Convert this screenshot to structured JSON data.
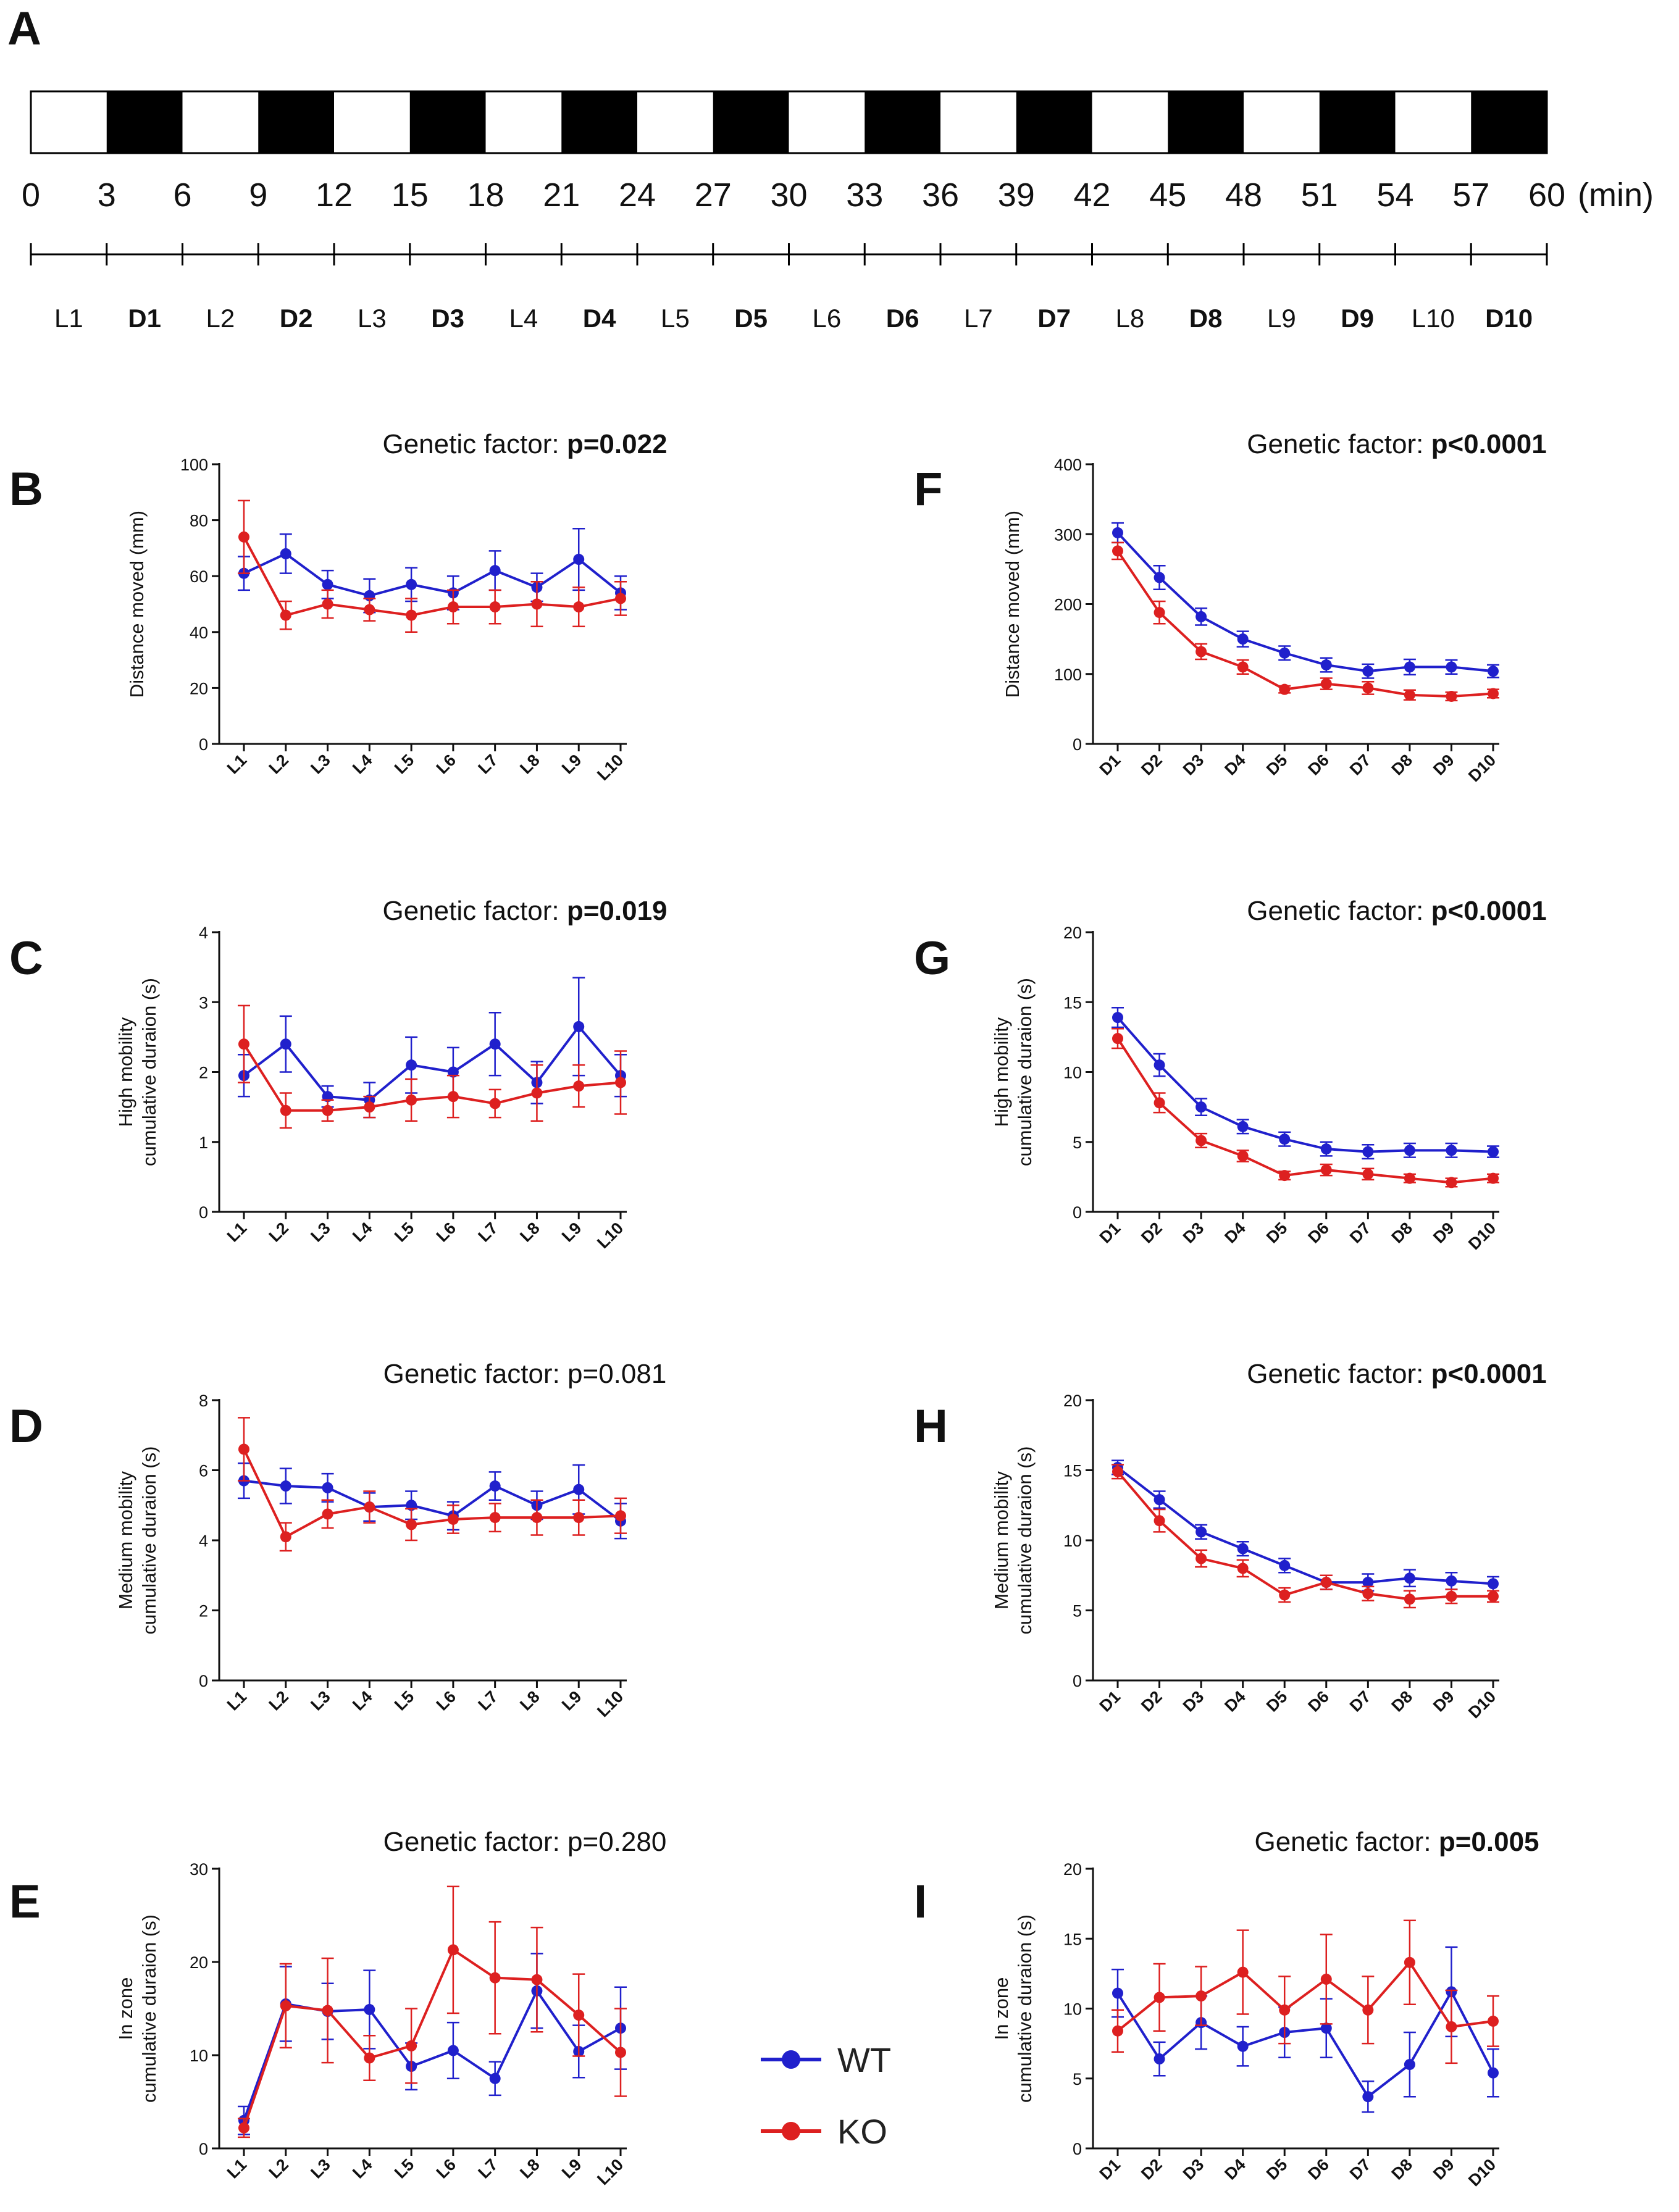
{
  "colors": {
    "wt": "#2020CC",
    "ko": "#DD2020",
    "axis": "#111111"
  },
  "timeline": {
    "label": "A",
    "ticks": [
      "0",
      "3",
      "6",
      "9",
      "12",
      "15",
      "18",
      "21",
      "24",
      "27",
      "30",
      "33",
      "36",
      "39",
      "42",
      "45",
      "48",
      "51",
      "54",
      "57",
      "60"
    ],
    "unit": "(min)",
    "phases": [
      {
        "label": "L1",
        "dark": false
      },
      {
        "label": "D1",
        "dark": true
      },
      {
        "label": "L2",
        "dark": false
      },
      {
        "label": "D2",
        "dark": true
      },
      {
        "label": "L3",
        "dark": false
      },
      {
        "label": "D3",
        "dark": true
      },
      {
        "label": "L4",
        "dark": false
      },
      {
        "label": "D4",
        "dark": true
      },
      {
        "label": "L5",
        "dark": false
      },
      {
        "label": "D5",
        "dark": true
      },
      {
        "label": "L6",
        "dark": false
      },
      {
        "label": "D6",
        "dark": true
      },
      {
        "label": "L7",
        "dark": false
      },
      {
        "label": "D7",
        "dark": true
      },
      {
        "label": "L8",
        "dark": false
      },
      {
        "label": "D8",
        "dark": true
      },
      {
        "label": "L9",
        "dark": false
      },
      {
        "label": "D9",
        "dark": true
      },
      {
        "label": "L10",
        "dark": false
      },
      {
        "label": "D10",
        "dark": true
      }
    ]
  },
  "legend": {
    "wt": "WT",
    "ko": "KO"
  },
  "chart_data": [
    {
      "panel": "B",
      "type": "line",
      "title_prefix": "Genetic factor: ",
      "title_value": "p=0.022",
      "title_bold": true,
      "ylabel_lines": [
        "Distance moved  (mm)"
      ],
      "ylim": [
        0,
        100
      ],
      "yticks": [
        0,
        20,
        40,
        60,
        80,
        100
      ],
      "categories": [
        "L1",
        "L2",
        "L3",
        "L4",
        "L5",
        "L6",
        "L7",
        "L8",
        "L9",
        "L10"
      ],
      "series": [
        {
          "name": "WT",
          "values": [
            61,
            68,
            57,
            53,
            57,
            54,
            62,
            56,
            66,
            54
          ],
          "errors": [
            6,
            7,
            5,
            6,
            6,
            6,
            7,
            5,
            11,
            6
          ]
        },
        {
          "name": "KO",
          "values": [
            74,
            46,
            50,
            48,
            46,
            49,
            49,
            50,
            49,
            52
          ],
          "errors": [
            13,
            5,
            5,
            4,
            6,
            6,
            6,
            8,
            7,
            6
          ]
        }
      ]
    },
    {
      "panel": "C",
      "type": "line",
      "title_prefix": "Genetic factor: ",
      "title_value": "p=0.019",
      "title_bold": true,
      "ylabel_lines": [
        "High mobility",
        "cumulative duraion (s)"
      ],
      "ylim": [
        0,
        4
      ],
      "yticks": [
        0,
        1,
        2,
        3,
        4
      ],
      "categories": [
        "L1",
        "L2",
        "L3",
        "L4",
        "L5",
        "L6",
        "L7",
        "L8",
        "L9",
        "L10"
      ],
      "series": [
        {
          "name": "WT",
          "values": [
            1.95,
            2.4,
            1.65,
            1.6,
            2.1,
            2.0,
            2.4,
            1.85,
            2.65,
            1.95
          ],
          "errors": [
            0.3,
            0.4,
            0.15,
            0.25,
            0.4,
            0.35,
            0.45,
            0.3,
            0.7,
            0.3
          ]
        },
        {
          "name": "KO",
          "values": [
            2.4,
            1.45,
            1.45,
            1.5,
            1.6,
            1.65,
            1.55,
            1.7,
            1.8,
            1.85
          ],
          "errors": [
            0.55,
            0.25,
            0.15,
            0.15,
            0.3,
            0.3,
            0.2,
            0.4,
            0.3,
            0.45
          ]
        }
      ]
    },
    {
      "panel": "D",
      "type": "line",
      "title_prefix": "Genetic factor: ",
      "title_value": "p=0.081",
      "title_bold": false,
      "ylabel_lines": [
        "Medium mobility",
        "cumulative duraion (s)"
      ],
      "ylim": [
        0,
        8
      ],
      "yticks": [
        0,
        2,
        4,
        6,
        8
      ],
      "categories": [
        "L1",
        "L2",
        "L3",
        "L4",
        "L5",
        "L6",
        "L7",
        "L8",
        "L9",
        "L10"
      ],
      "series": [
        {
          "name": "WT",
          "values": [
            5.7,
            5.55,
            5.5,
            4.95,
            5.0,
            4.7,
            5.55,
            5.0,
            5.45,
            4.55
          ],
          "errors": [
            0.5,
            0.5,
            0.4,
            0.4,
            0.4,
            0.4,
            0.4,
            0.4,
            0.7,
            0.5
          ]
        },
        {
          "name": "KO",
          "values": [
            6.6,
            4.1,
            4.75,
            4.95,
            4.45,
            4.6,
            4.65,
            4.65,
            4.65,
            4.7
          ],
          "errors": [
            0.9,
            0.4,
            0.4,
            0.45,
            0.45,
            0.4,
            0.4,
            0.5,
            0.5,
            0.5
          ]
        }
      ]
    },
    {
      "panel": "E",
      "type": "line",
      "title_prefix": "Genetic factor: ",
      "title_value": "p=0.280",
      "title_bold": false,
      "ylabel_lines": [
        "In zone",
        "cumulative duraion (s)"
      ],
      "ylim": [
        0,
        30
      ],
      "yticks": [
        0,
        10,
        20,
        30
      ],
      "categories": [
        "L1",
        "L2",
        "L3",
        "L4",
        "L5",
        "L6",
        "L7",
        "L8",
        "L9",
        "L10"
      ],
      "series": [
        {
          "name": "WT",
          "values": [
            3.0,
            15.5,
            14.7,
            14.9,
            8.8,
            10.5,
            7.5,
            16.9,
            10.4,
            12.9
          ],
          "errors": [
            1.5,
            4.0,
            3.0,
            4.2,
            2.5,
            3.0,
            1.8,
            4.0,
            2.8,
            4.4
          ]
        },
        {
          "name": "KO",
          "values": [
            2.2,
            15.3,
            14.8,
            9.7,
            11.0,
            21.3,
            18.3,
            18.1,
            14.3,
            10.3
          ],
          "errors": [
            1.0,
            4.5,
            5.6,
            2.4,
            4.0,
            6.8,
            6.0,
            5.6,
            4.4,
            4.7
          ]
        }
      ]
    },
    {
      "panel": "F",
      "type": "line",
      "title_prefix": "Genetic factor: ",
      "title_value": "p<0.0001",
      "title_bold": true,
      "ylabel_lines": [
        "Distance moved  (mm)"
      ],
      "ylim": [
        0,
        400
      ],
      "yticks": [
        0,
        100,
        200,
        300,
        400
      ],
      "categories": [
        "D1",
        "D2",
        "D3",
        "D4",
        "D5",
        "D6",
        "D7",
        "D8",
        "D9",
        "D10"
      ],
      "series": [
        {
          "name": "WT",
          "values": [
            302,
            238,
            182,
            150,
            130,
            113,
            104,
            110,
            110,
            104
          ],
          "errors": [
            14,
            17,
            12,
            11,
            10,
            10,
            10,
            11,
            10,
            9
          ]
        },
        {
          "name": "KO",
          "values": [
            276,
            188,
            132,
            110,
            78,
            86,
            80,
            70,
            68,
            72
          ],
          "errors": [
            12,
            16,
            11,
            10,
            5,
            8,
            9,
            7,
            6,
            6
          ]
        }
      ]
    },
    {
      "panel": "G",
      "type": "line",
      "title_prefix": "Genetic factor: ",
      "title_value": "p<0.0001",
      "title_bold": true,
      "ylabel_lines": [
        "High mobility",
        "cumulative duraion (s)"
      ],
      "ylim": [
        0,
        20
      ],
      "yticks": [
        0,
        5,
        10,
        15,
        20
      ],
      "categories": [
        "D1",
        "D2",
        "D3",
        "D4",
        "D5",
        "D6",
        "D7",
        "D8",
        "D9",
        "D10"
      ],
      "series": [
        {
          "name": "WT",
          "values": [
            13.9,
            10.5,
            7.5,
            6.1,
            5.2,
            4.5,
            4.3,
            4.4,
            4.4,
            4.3
          ],
          "errors": [
            0.7,
            0.8,
            0.6,
            0.5,
            0.5,
            0.5,
            0.5,
            0.5,
            0.5,
            0.4
          ]
        },
        {
          "name": "KO",
          "values": [
            12.4,
            7.8,
            5.1,
            4.0,
            2.6,
            3.0,
            2.7,
            2.4,
            2.1,
            2.4
          ],
          "errors": [
            0.7,
            0.7,
            0.5,
            0.4,
            0.3,
            0.4,
            0.4,
            0.3,
            0.3,
            0.3
          ]
        }
      ]
    },
    {
      "panel": "H",
      "type": "line",
      "title_prefix": "Genetic factor: ",
      "title_value": "p<0.0001",
      "title_bold": true,
      "ylabel_lines": [
        "Medium mobility",
        "cumulative duraion (s)"
      ],
      "ylim": [
        0,
        20
      ],
      "yticks": [
        0,
        5,
        10,
        15,
        20
      ],
      "categories": [
        "D1",
        "D2",
        "D3",
        "D4",
        "D5",
        "D6",
        "D7",
        "D8",
        "D9",
        "D10"
      ],
      "series": [
        {
          "name": "WT",
          "values": [
            15.2,
            12.9,
            10.6,
            9.4,
            8.2,
            7.0,
            7.0,
            7.3,
            7.1,
            6.9
          ],
          "errors": [
            0.5,
            0.6,
            0.5,
            0.5,
            0.5,
            0.5,
            0.6,
            0.6,
            0.6,
            0.5
          ]
        },
        {
          "name": "KO",
          "values": [
            14.9,
            11.4,
            8.7,
            8.0,
            6.1,
            7.0,
            6.2,
            5.8,
            6.0,
            6.0
          ],
          "errors": [
            0.5,
            0.8,
            0.6,
            0.6,
            0.5,
            0.5,
            0.5,
            0.6,
            0.5,
            0.4
          ]
        }
      ]
    },
    {
      "panel": "I",
      "type": "line",
      "title_prefix": "Genetic factor: ",
      "title_value": "p=0.005",
      "title_bold": true,
      "ylabel_lines": [
        "In zone",
        "cumulative duraion (s)"
      ],
      "ylim": [
        0,
        20
      ],
      "yticks": [
        0,
        5,
        10,
        15,
        20
      ],
      "categories": [
        "D1",
        "D2",
        "D3",
        "D4",
        "D5",
        "D6",
        "D7",
        "D8",
        "D9",
        "D10"
      ],
      "series": [
        {
          "name": "WT",
          "values": [
            11.1,
            6.4,
            9.0,
            7.3,
            8.3,
            8.6,
            3.7,
            6.0,
            11.2,
            5.4
          ],
          "errors": [
            1.7,
            1.2,
            1.9,
            1.4,
            1.8,
            2.1,
            1.1,
            2.3,
            3.2,
            1.7
          ]
        },
        {
          "name": "KO",
          "values": [
            8.4,
            10.8,
            10.9,
            12.6,
            9.9,
            12.1,
            9.9,
            13.3,
            8.7,
            9.1
          ],
          "errors": [
            1.5,
            2.4,
            2.1,
            3.0,
            2.4,
            3.2,
            2.4,
            3.0,
            2.6,
            1.8
          ]
        }
      ]
    }
  ]
}
